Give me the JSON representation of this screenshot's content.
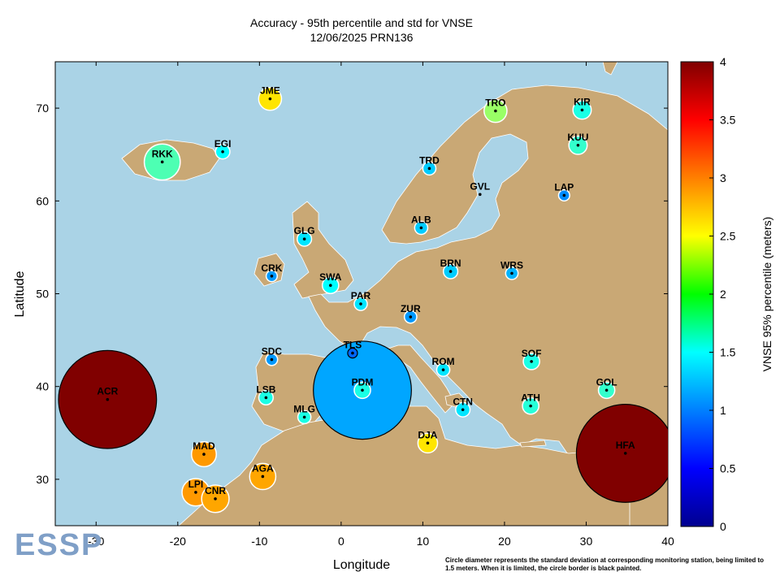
{
  "chart_title": {
    "line1": "Accuracy - 95th percentile and std for VNSE",
    "line2": "12/06/2025 PRN136"
  },
  "logo_text": "ESSP",
  "footnote": "Circle diameter represents the standard deviation at corresponding monitoring station, being limited to 1.5 meters. When it is limited, the circle border is black painted.",
  "colors": {
    "sea": "#aad3e6",
    "land": "#c9a875",
    "coast": "#ffffff"
  },
  "chart_data": {
    "type": "scatter",
    "xlabel": "Longitude",
    "ylabel": "Latitude",
    "xlim": [
      -35,
      40
    ],
    "ylim": [
      25,
      75
    ],
    "xticks": [
      -30,
      -20,
      -10,
      0,
      10,
      20,
      30,
      40
    ],
    "yticks": [
      30,
      40,
      50,
      60,
      70
    ],
    "colorbar": {
      "label": "VNSE 95% percentile (meters)",
      "range": [
        0,
        4
      ],
      "ticks": [
        0,
        0.5,
        1,
        1.5,
        2,
        2.5,
        3,
        3.5,
        4
      ],
      "colormap": "jet"
    },
    "points": [
      {
        "name": "JME",
        "lon": -8.7,
        "lat": 71.0,
        "p95": 2.6,
        "std": 0.35,
        "limited": false
      },
      {
        "name": "TRO",
        "lon": 18.9,
        "lat": 69.7,
        "p95": 2.1,
        "std": 0.35,
        "limited": false
      },
      {
        "name": "KIR",
        "lon": 29.5,
        "lat": 69.8,
        "p95": 1.6,
        "std": 0.28,
        "limited": false
      },
      {
        "name": "RKK",
        "lon": -21.9,
        "lat": 64.2,
        "p95": 1.8,
        "std": 0.55,
        "limited": false
      },
      {
        "name": "EGI",
        "lon": -14.5,
        "lat": 65.3,
        "p95": 1.5,
        "std": 0.22,
        "limited": false
      },
      {
        "name": "KUU",
        "lon": 29.0,
        "lat": 66.0,
        "p95": 1.7,
        "std": 0.28,
        "limited": false
      },
      {
        "name": "TRD",
        "lon": 10.8,
        "lat": 63.5,
        "p95": 1.3,
        "std": 0.2,
        "limited": false
      },
      {
        "name": "GVL",
        "lon": 17.0,
        "lat": 60.7,
        "p95": null,
        "std": 0.0,
        "limited": false
      },
      {
        "name": "LAP",
        "lon": 27.3,
        "lat": 60.6,
        "p95": 1.05,
        "std": 0.17,
        "limited": false
      },
      {
        "name": "ALB",
        "lon": 9.8,
        "lat": 57.1,
        "p95": 1.3,
        "std": 0.2,
        "limited": false
      },
      {
        "name": "GLG",
        "lon": -4.5,
        "lat": 55.9,
        "p95": 1.4,
        "std": 0.22,
        "limited": false
      },
      {
        "name": "CRK",
        "lon": -8.5,
        "lat": 51.9,
        "p95": 1.1,
        "std": 0.17,
        "limited": false
      },
      {
        "name": "BRN",
        "lon": 13.4,
        "lat": 52.4,
        "p95": 1.3,
        "std": 0.22,
        "limited": false
      },
      {
        "name": "WRS",
        "lon": 20.9,
        "lat": 52.2,
        "p95": 1.2,
        "std": 0.19,
        "limited": false
      },
      {
        "name": "SWA",
        "lon": -1.3,
        "lat": 50.9,
        "p95": 1.5,
        "std": 0.25,
        "limited": false
      },
      {
        "name": "PAR",
        "lon": 2.4,
        "lat": 48.9,
        "p95": 1.4,
        "std": 0.2,
        "limited": false
      },
      {
        "name": "ZUR",
        "lon": 8.5,
        "lat": 47.5,
        "p95": 1.1,
        "std": 0.19,
        "limited": false
      },
      {
        "name": "TLS",
        "lon": 1.4,
        "lat": 43.6,
        "p95": 0.9,
        "std": 0.15,
        "limited": true
      },
      {
        "name": "SDC",
        "lon": -8.5,
        "lat": 42.9,
        "p95": 1.1,
        "std": 0.18,
        "limited": false
      },
      {
        "name": "ROM",
        "lon": 12.5,
        "lat": 41.8,
        "p95": 1.4,
        "std": 0.2,
        "limited": false
      },
      {
        "name": "SOF",
        "lon": 23.3,
        "lat": 42.7,
        "p95": 1.6,
        "std": 0.25,
        "limited": false
      },
      {
        "name": "LSB",
        "lon": -9.2,
        "lat": 38.8,
        "p95": 1.6,
        "std": 0.22,
        "limited": false
      },
      {
        "name": "PDM",
        "lon": 2.6,
        "lat": 39.6,
        "p95": 1.6,
        "std": 0.25,
        "limited": false
      },
      {
        "name": "PDM",
        "lon": 2.6,
        "lat": 39.6,
        "p95": 1.15,
        "std": 1.5,
        "limited": true
      },
      {
        "name": "GOL",
        "lon": 32.5,
        "lat": 39.6,
        "p95": 1.7,
        "std": 0.25,
        "limited": false
      },
      {
        "name": "ACR",
        "lon": -28.6,
        "lat": 38.6,
        "p95": 4.0,
        "std": 1.5,
        "limited": true
      },
      {
        "name": "MLG",
        "lon": -4.5,
        "lat": 36.7,
        "p95": 1.6,
        "std": 0.2,
        "limited": false
      },
      {
        "name": "CTN",
        "lon": 14.9,
        "lat": 37.5,
        "p95": 1.4,
        "std": 0.22,
        "limited": false
      },
      {
        "name": "ATH",
        "lon": 23.2,
        "lat": 37.9,
        "p95": 1.65,
        "std": 0.25,
        "limited": false
      },
      {
        "name": "DJA",
        "lon": 10.6,
        "lat": 33.9,
        "p95": 2.6,
        "std": 0.3,
        "limited": false
      },
      {
        "name": "HFA",
        "lon": 34.8,
        "lat": 32.8,
        "p95": 4.0,
        "std": 1.5,
        "limited": true
      },
      {
        "name": "MAD",
        "lon": -16.8,
        "lat": 32.7,
        "p95": 2.9,
        "std": 0.38,
        "limited": false
      },
      {
        "name": "AGA",
        "lon": -9.6,
        "lat": 30.3,
        "p95": 2.85,
        "std": 0.4,
        "limited": false
      },
      {
        "name": "LPI",
        "lon": -17.8,
        "lat": 28.6,
        "p95": 2.9,
        "std": 0.42,
        "limited": false
      },
      {
        "name": "CNR",
        "lon": -15.4,
        "lat": 27.9,
        "p95": 2.85,
        "std": 0.42,
        "limited": false
      }
    ]
  }
}
